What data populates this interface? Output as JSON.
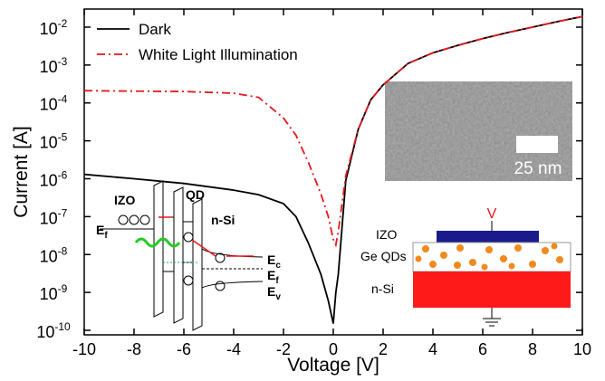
{
  "chart_data": {
    "type": "line",
    "x_label": "Voltage [V]",
    "y_label": "Current [A]",
    "log_y": true,
    "legend": "upper left",
    "x": [
      -10,
      -8,
      -6,
      -4,
      -3,
      -2,
      -1.5,
      -1,
      -0.5,
      -0.2,
      0,
      0.1,
      0.2,
      0.5,
      1,
      1.5,
      2,
      3,
      4,
      5,
      6,
      7,
      8,
      9,
      10
    ],
    "series": [
      {
        "name": "Dark",
        "color": "#000000",
        "dash": "solid",
        "values": [
          1.3e-06,
          1e-06,
          7.5e-07,
          5e-07,
          3.8e-07,
          2.2e-07,
          1e-07,
          2e-08,
          3e-09,
          6e-10,
          1.5e-10,
          1e-09,
          3e-09,
          9e-07,
          2e-05,
          0.00012,
          0.0003,
          0.0011,
          0.0021,
          0.0033,
          0.005,
          0.0072,
          0.01,
          0.014,
          0.019
        ]
      },
      {
        "name": "White Light Illumination",
        "color": "#e8161b",
        "dash": "dashdot",
        "values": [
          0.00021,
          0.000205,
          0.0002,
          0.00018,
          0.00014,
          4e-05,
          1.4e-05,
          2.7e-06,
          4e-07,
          1e-07,
          2.5e-08,
          1.8e-08,
          4e-08,
          1.2e-06,
          2e-05,
          0.00012,
          0.0003,
          0.0011,
          0.0021,
          0.0033,
          0.005,
          0.0072,
          0.01,
          0.014,
          0.019
        ]
      }
    ],
    "xlim": [
      -10,
      10
    ],
    "xticks": [
      -10,
      -8,
      -6,
      -4,
      -2,
      0,
      2,
      4,
      6,
      8,
      10
    ],
    "ylim": [
      7.6e-11,
      0.03
    ],
    "yticks": [
      {
        "value": 1e-10,
        "label": "10-10"
      },
      {
        "value": 1e-09,
        "label": "10-9"
      },
      {
        "value": 1e-08,
        "label": "10-8"
      },
      {
        "value": 1e-07,
        "label": "10-7"
      },
      {
        "value": 1e-06,
        "label": "10-6"
      },
      {
        "value": 1e-05,
        "label": "10-5"
      },
      {
        "value": 0.0001,
        "label": "10-4"
      },
      {
        "value": 0.001,
        "label": "10-3"
      },
      {
        "value": 0.01,
        "label": "10-2"
      }
    ],
    "annotations": {
      "tem_scale": "25 nm",
      "device_bias": "V",
      "device_layers": [
        "IZO",
        "Ge QDs",
        "n-Si"
      ],
      "band_regions": [
        "IZO",
        "QD",
        "n-Si"
      ],
      "band_levels": [
        "Ef",
        "Ec",
        "Ef",
        "Ev"
      ]
    }
  }
}
